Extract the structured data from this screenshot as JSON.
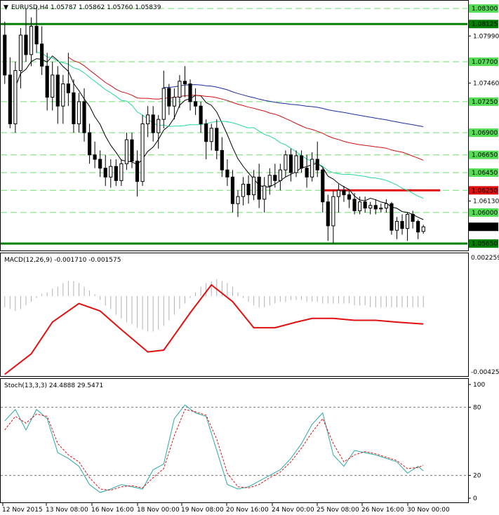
{
  "colors": {
    "bull_candle": "#ffffff",
    "bear_candle": "#000000",
    "wick": "#000000",
    "ma_blue": "#1c2b9c",
    "ma_red": "#d01010",
    "ma_green": "#28d79a",
    "ma_black": "#000000",
    "support_green": "#008000",
    "resistance_red": "#e01010",
    "grid_green": "#6ddf6d",
    "price_box_green": "#55dd55",
    "macd_hist": "#b0b0b0",
    "macd_signal": "#e01010",
    "stoch_main": "#2aa8a8",
    "stoch_signal": "#e01010",
    "stoch_level": "#777777"
  },
  "main": {
    "header": "EURUSD,H4  1.05787 1.05862 1.05760 1.05839",
    "current_price": "1.05839"
  },
  "macd": {
    "header": "MACD(12,26,9) -0.001710 -0.001575",
    "top_label": "0.002259",
    "bottom_label": "-0.004257"
  },
  "stoch": {
    "header": "Stoch(13,3,3) 24.4888 29.5471",
    "levels": [
      "100",
      "80",
      "20",
      "0"
    ]
  },
  "x_axis_labels": [
    "12 Nov 2015",
    "13 Nov 08:00",
    "16 Nov 16:00",
    "18 Nov 00:00",
    "19 Nov 08:00",
    "20 Nov 16:00",
    "24 Nov 00:00",
    "25 Nov 08:00",
    "26 Nov 16:00",
    "30 Nov 00:00"
  ],
  "chart_data": [
    {
      "type": "candlestick",
      "title": "EURUSD,H4  1.05787 1.05862 1.05760 1.05839",
      "y_tick_labels": [
        "1.08300",
        "1.08125",
        "1.07990",
        "1.07700",
        "1.07460",
        "1.07250",
        "1.06900",
        "1.06650",
        "1.06450",
        "1.06250",
        "1.06130",
        "1.06000",
        "1.05839",
        "1.05650"
      ],
      "ylim": [
        1.0558,
        1.0838
      ],
      "green_level_lines": [
        1.083,
        1.077,
        1.0725,
        1.069,
        1.0665,
        1.0645,
        1.0625,
        1.06
      ],
      "support_line": 1.0565,
      "resistance_line": 1.0625,
      "upper_line": 1.08125,
      "grid": "dashed",
      "ohlc": [
        [
          1.08,
          1.0815,
          1.0745,
          1.0755
        ],
        [
          1.0755,
          1.0775,
          1.0695,
          1.07
        ],
        [
          1.07,
          1.077,
          1.069,
          1.076
        ],
        [
          1.076,
          1.0808,
          1.074,
          1.08
        ],
        [
          1.08,
          1.083,
          1.077,
          1.0778
        ],
        [
          1.0778,
          1.082,
          1.0765,
          1.081
        ],
        [
          1.081,
          1.0832,
          1.078,
          1.079
        ],
        [
          1.079,
          1.081,
          1.0755,
          1.0765
        ],
        [
          1.0765,
          1.078,
          1.0715,
          1.073
        ],
        [
          1.073,
          1.077,
          1.0715,
          1.0755
        ],
        [
          1.0755,
          1.0765,
          1.07,
          1.072
        ],
        [
          1.072,
          1.0755,
          1.07,
          1.0745
        ],
        [
          1.0745,
          1.078,
          1.072,
          1.0735
        ],
        [
          1.0735,
          1.075,
          1.069,
          1.07
        ],
        [
          1.07,
          1.0735,
          1.069,
          1.0725
        ],
        [
          1.0725,
          1.074,
          1.068,
          1.069
        ],
        [
          1.069,
          1.07,
          1.0655,
          1.0665
        ],
        [
          1.0665,
          1.068,
          1.065,
          1.066
        ],
        [
          1.066,
          1.067,
          1.064,
          1.065
        ],
        [
          1.065,
          1.0665,
          1.063,
          1.064
        ],
        [
          1.064,
          1.066,
          1.0628,
          1.0652
        ],
        [
          1.0652,
          1.066,
          1.063,
          1.0636
        ],
        [
          1.0636,
          1.066,
          1.063,
          1.0655
        ],
        [
          1.0655,
          1.069,
          1.0648,
          1.0682
        ],
        [
          1.0682,
          1.069,
          1.065,
          1.0658
        ],
        [
          1.0658,
          1.067,
          1.0618,
          1.0635
        ],
        [
          1.0635,
          1.071,
          1.063,
          1.07
        ],
        [
          1.07,
          1.072,
          1.0685,
          1.071
        ],
        [
          1.071,
          1.072,
          1.068,
          1.069
        ],
        [
          1.069,
          1.071,
          1.0672,
          1.0705
        ],
        [
          1.0705,
          1.076,
          1.0695,
          1.074
        ],
        [
          1.074,
          1.0745,
          1.071,
          1.072
        ],
        [
          1.072,
          1.074,
          1.0705,
          1.073
        ],
        [
          1.073,
          1.0755,
          1.0718,
          1.0748
        ],
        [
          1.0748,
          1.0765,
          1.073,
          1.0745
        ],
        [
          1.0745,
          1.075,
          1.0715,
          1.0725
        ],
        [
          1.0725,
          1.074,
          1.071,
          1.072
        ],
        [
          1.072,
          1.0725,
          1.069,
          1.07
        ],
        [
          1.07,
          1.0705,
          1.066,
          1.068
        ],
        [
          1.068,
          1.07,
          1.067,
          1.0695
        ],
        [
          1.0695,
          1.0705,
          1.066,
          1.067
        ],
        [
          1.067,
          1.0685,
          1.064,
          1.0648
        ],
        [
          1.0648,
          1.066,
          1.063,
          1.064
        ],
        [
          1.064,
          1.0648,
          1.06,
          1.061
        ],
        [
          1.061,
          1.0625,
          1.0595,
          1.0618
        ],
        [
          1.0618,
          1.064,
          1.0608,
          1.0632
        ],
        [
          1.0632,
          1.0642,
          1.061,
          1.062
        ],
        [
          1.062,
          1.0648,
          1.0614,
          1.064
        ],
        [
          1.064,
          1.0655,
          1.0605,
          1.0615
        ],
        [
          1.0615,
          1.064,
          1.06,
          1.063
        ],
        [
          1.063,
          1.065,
          1.062,
          1.0642
        ],
        [
          1.0642,
          1.0655,
          1.0628,
          1.0636
        ],
        [
          1.0636,
          1.0655,
          1.0625,
          1.0648
        ],
        [
          1.0648,
          1.067,
          1.064,
          1.0665
        ],
        [
          1.0665,
          1.0672,
          1.0635,
          1.0645
        ],
        [
          1.0645,
          1.067,
          1.064,
          1.0664
        ],
        [
          1.0664,
          1.067,
          1.0645,
          1.065
        ],
        [
          1.065,
          1.0665,
          1.0628,
          1.064
        ],
        [
          1.064,
          1.0668,
          1.0635,
          1.066
        ],
        [
          1.066,
          1.068,
          1.064,
          1.0648
        ],
        [
          1.0648,
          1.065,
          1.06,
          1.0612
        ],
        [
          1.0612,
          1.062,
          1.0568,
          1.0585
        ],
        [
          1.0585,
          1.0625,
          1.0565,
          1.0618
        ],
        [
          1.0618,
          1.0632,
          1.06,
          1.0625
        ],
        [
          1.0625,
          1.063,
          1.0612,
          1.062
        ],
        [
          1.062,
          1.0625,
          1.0605,
          1.0615
        ],
        [
          1.0615,
          1.0622,
          1.0598,
          1.0602
        ],
        [
          1.0602,
          1.0618,
          1.0598,
          1.0612
        ],
        [
          1.0612,
          1.0618,
          1.06,
          1.0605
        ],
        [
          1.0605,
          1.0612,
          1.0598,
          1.0608
        ],
        [
          1.0608,
          1.0615,
          1.0598,
          1.0604
        ],
        [
          1.0604,
          1.061,
          1.06,
          1.0605
        ],
        [
          1.0605,
          1.0615,
          1.06,
          1.061
        ],
        [
          1.061,
          1.0612,
          1.0575,
          1.058
        ],
        [
          1.058,
          1.0595,
          1.057,
          1.059
        ],
        [
          1.059,
          1.0598,
          1.0575,
          1.0582
        ],
        [
          1.0582,
          1.06,
          1.0568,
          1.0598
        ],
        [
          1.0598,
          1.0602,
          1.0582,
          1.059
        ],
        [
          1.059,
          1.0592,
          1.057,
          1.0578
        ],
        [
          1.05787,
          1.05862,
          1.0576,
          1.05839
        ]
      ]
    },
    {
      "type": "line",
      "title": "MACD(12,26,9) -0.001710 -0.001575",
      "ylim": [
        -0.004257,
        0.002259
      ],
      "histogram": [
        -0.0006,
        -0.0007,
        -0.0008,
        -0.0007,
        -0.0005,
        -0.0003,
        -0.0001,
        0.0001,
        0.0002,
        0.0004,
        0.0005,
        0.0007,
        0.0008,
        0.0008,
        0.0007,
        0.0005,
        0.0003,
        0.0001,
        -0.0002,
        -0.0005,
        -0.0007,
        -0.001,
        -0.0012,
        -0.0014,
        -0.0015,
        -0.0017,
        -0.0018,
        -0.0019,
        -0.0019,
        -0.0018,
        -0.0016,
        -0.0013,
        -0.001,
        -0.0007,
        -0.0004,
        -0.0001,
        0.0002,
        0.0005,
        0.0007,
        0.0008,
        0.0009,
        0.0008,
        0.0007,
        0.0005,
        0.0002,
        -0.0001,
        -0.0003,
        -0.0005,
        -0.0006,
        -0.0006,
        -0.0005,
        -0.0004,
        -0.0003,
        -0.0003,
        -0.0002,
        -0.0002,
        -0.0002,
        -0.0003,
        -0.0003,
        -0.0003,
        -0.0004,
        -0.0004,
        -0.0004,
        -0.0004,
        -0.0004,
        -0.0004,
        -0.0005,
        -0.0005,
        -0.0005,
        -0.0006,
        -0.0006,
        -0.0006,
        -0.0006,
        -0.0006,
        -0.0006,
        -0.0006,
        -0.0006,
        -0.0006,
        -0.0006,
        -0.0006
      ],
      "signal": {
        "x": [
          0,
          5,
          9,
          14,
          18,
          22,
          27,
          30,
          35,
          39,
          43,
          47,
          51,
          55,
          58,
          62,
          66,
          70,
          74,
          79
        ],
        "values": [
          -0.0042,
          -0.0031,
          -0.0014,
          -0.0004,
          -0.0008,
          -0.0018,
          -0.003,
          -0.0029,
          -0.0009,
          0.0006,
          -0.0003,
          -0.0017,
          -0.0017,
          -0.0014,
          -0.0012,
          -0.0012,
          -0.0013,
          -0.0013,
          -0.0014,
          -0.0015
        ]
      }
    },
    {
      "type": "line",
      "title": "Stoch(13,3,3) 24.4888 29.5471",
      "ylim": [
        0,
        100
      ],
      "levels": [
        80,
        20
      ],
      "main": {
        "x": [
          0,
          2,
          4,
          6,
          8,
          10,
          12,
          14,
          16,
          18,
          20,
          22,
          24,
          26,
          28,
          30,
          32,
          34,
          36,
          38,
          40,
          42,
          44,
          46,
          48,
          50,
          52,
          54,
          56,
          58,
          60,
          62,
          64,
          66,
          68,
          70,
          72,
          74,
          76,
          78,
          79
        ],
        "values": [
          68,
          78,
          60,
          78,
          70,
          40,
          35,
          28,
          12,
          5,
          8,
          12,
          10,
          8,
          25,
          30,
          70,
          82,
          75,
          72,
          42,
          12,
          8,
          10,
          15,
          20,
          25,
          35,
          48,
          65,
          75,
          38,
          28,
          42,
          40,
          38,
          35,
          32,
          22,
          28,
          24
        ]
      },
      "signal": {
        "x": [
          0,
          2,
          4,
          6,
          8,
          10,
          12,
          14,
          16,
          18,
          20,
          22,
          24,
          26,
          28,
          30,
          32,
          34,
          36,
          38,
          40,
          42,
          44,
          46,
          48,
          50,
          52,
          54,
          56,
          58,
          60,
          62,
          64,
          66,
          68,
          70,
          72,
          74,
          76,
          78,
          79
        ],
        "values": [
          60,
          72,
          66,
          74,
          72,
          48,
          38,
          32,
          18,
          8,
          7,
          10,
          11,
          9,
          18,
          26,
          55,
          78,
          76,
          73,
          52,
          22,
          10,
          9,
          12,
          18,
          23,
          32,
          44,
          58,
          70,
          48,
          32,
          38,
          41,
          39,
          36,
          33,
          26,
          27,
          29
        ]
      }
    }
  ]
}
